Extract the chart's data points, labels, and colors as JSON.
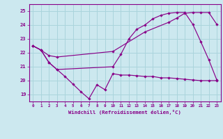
{
  "bg_color": "#cce8ef",
  "line_color": "#880088",
  "grid_color": "#aad4dc",
  "xlabel": "Windchill (Refroidissement éolien,°C)",
  "ylabel_ticks": [
    19,
    20,
    21,
    22,
    23,
    24,
    25
  ],
  "xlim": [
    -0.5,
    23.5
  ],
  "ylim": [
    18.5,
    25.5
  ],
  "line1_x": [
    0,
    1,
    2,
    3,
    10,
    11,
    12,
    13,
    14,
    15,
    16,
    17,
    18,
    19,
    20,
    21,
    22,
    23
  ],
  "line1_y": [
    22.5,
    22.2,
    21.3,
    20.8,
    21.0,
    21.9,
    23.0,
    23.7,
    24.0,
    24.45,
    24.7,
    24.85,
    24.9,
    24.9,
    24.05,
    22.8,
    21.5,
    20.05
  ],
  "line2_x": [
    0,
    1,
    2,
    3,
    4,
    5,
    6,
    7,
    8,
    9,
    10,
    11,
    12,
    13,
    14,
    15,
    16,
    17,
    18,
    19,
    20,
    21,
    22,
    23
  ],
  "line2_y": [
    22.5,
    22.2,
    21.3,
    20.8,
    20.3,
    19.75,
    19.2,
    18.7,
    19.7,
    19.35,
    20.5,
    20.4,
    20.4,
    20.35,
    20.3,
    20.3,
    20.2,
    20.2,
    20.15,
    20.1,
    20.05,
    20.0,
    20.0,
    20.0
  ],
  "line3_x": [
    0,
    1,
    2,
    3,
    10,
    14,
    17,
    18,
    19,
    20,
    21,
    22,
    23
  ],
  "line3_y": [
    22.5,
    22.2,
    21.8,
    21.7,
    22.1,
    23.5,
    24.2,
    24.5,
    24.85,
    24.9,
    24.9,
    24.9,
    24.05
  ]
}
